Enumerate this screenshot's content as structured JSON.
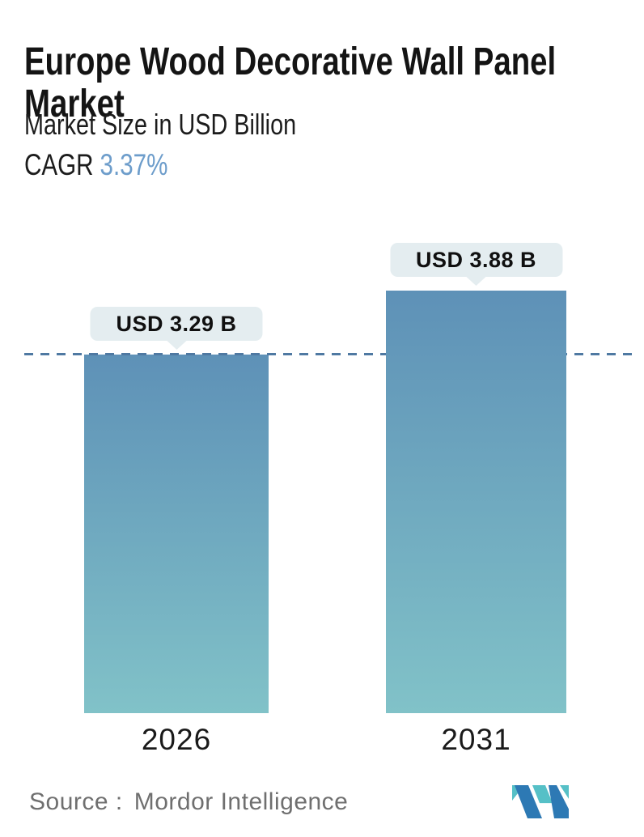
{
  "header": {
    "title": "Europe Wood Decorative Wall Panel Market",
    "title_lines": [
      "Europe Wood Decorative Wall Panel",
      "Market"
    ],
    "subtitle": "Market Size in USD Billion",
    "cagr_label": "CAGR",
    "cagr_value": "3.37%"
  },
  "chart_data": {
    "type": "bar",
    "title": "Europe Wood Decorative Wall Panel Market",
    "subtitle": "Market Size in USD Billion",
    "unit": "USD Billion",
    "cagr": "3.37%",
    "categories": [
      "2026",
      "2031"
    ],
    "values": [
      3.29,
      3.88
    ],
    "value_labels": [
      "USD 3.29 B",
      "USD 3.88 B"
    ],
    "ylim": [
      0,
      4.35
    ],
    "grid": false,
    "legend": false,
    "reference_line": {
      "style": "dashed",
      "value": 3.29,
      "note": "dashed horizontal line at 2026 bar top"
    },
    "bar_gradient": [
      "#5e91b7",
      "#81c2c8"
    ]
  },
  "footer": {
    "source_label": "Source :",
    "source_name": "Mordor Intelligence",
    "logo": "mordor-intelligence-logo"
  },
  "colors": {
    "accent_cagr": "#6d9dcb",
    "bar_top": "#5e91b7",
    "bar_bottom": "#81c2c8",
    "dash_line": "#4f79a2",
    "callout_bg": "#e4edf0",
    "text_primary": "#141414",
    "text_source": "#6f6f6f",
    "logo_teal": "#56c0c7",
    "logo_blue": "#2d79b4"
  }
}
